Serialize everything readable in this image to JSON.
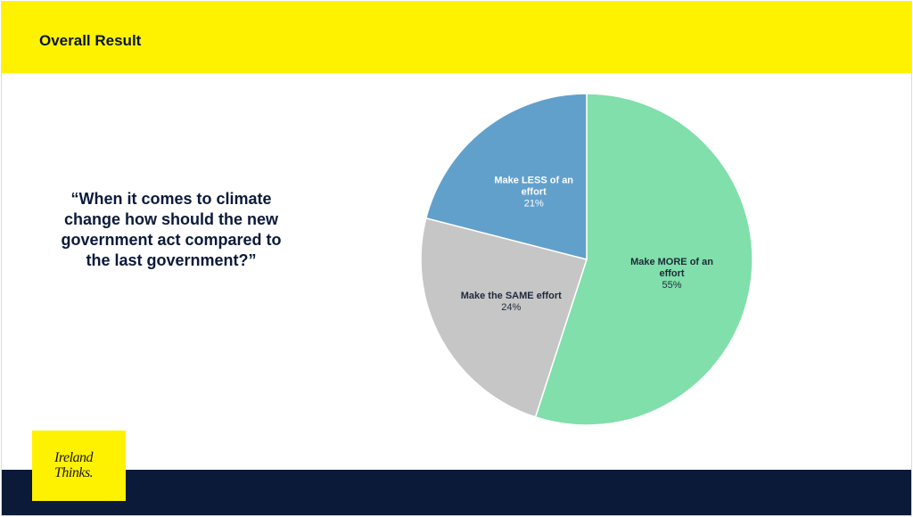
{
  "header": {
    "title": "Overall Result"
  },
  "question": "“When it comes to climate change how should the new government act compared to the last government?”",
  "logo": {
    "line1": "Ireland",
    "line2": "Thinks."
  },
  "colors": {
    "header_bg": "#fff200",
    "footer_bg": "#0a1a38",
    "more": "#80dfaa",
    "less": "#62a0cc",
    "same": "#c6c6c6"
  },
  "chart_data": {
    "type": "pie",
    "start": "top",
    "direction": "clockwise",
    "slices": [
      {
        "label_lines": [
          "Make MORE of an",
          "effort"
        ],
        "value": 55,
        "value_label": "55%",
        "color": "#80dfaa",
        "text_color": "#1e2a3a"
      },
      {
        "label_lines": [
          "Make the SAME effort"
        ],
        "value": 24,
        "value_label": "24%",
        "color": "#c6c6c6",
        "text_color": "#1e2a3a"
      },
      {
        "label_lines": [
          "Make LESS of an",
          "effort"
        ],
        "value": 21,
        "value_label": "21%",
        "color": "#62a0cc",
        "text_color": "#ffffff"
      }
    ]
  }
}
